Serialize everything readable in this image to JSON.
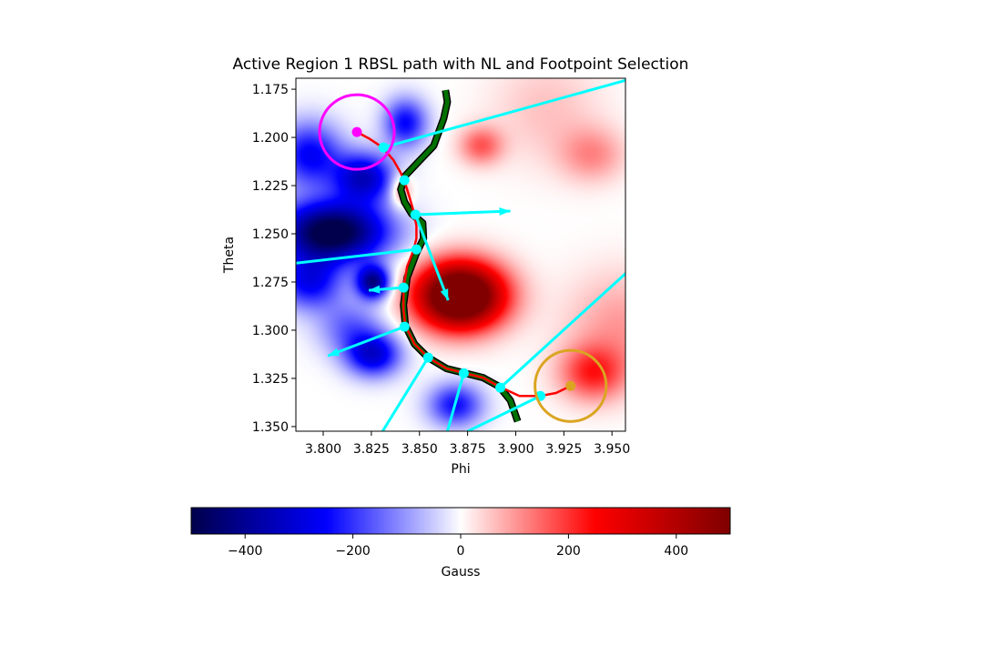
{
  "chart_data": {
    "type": "heatmap",
    "title": "Active Region 1 RBSL path with NL and Footpoint Selection",
    "xlabel": "Phi",
    "ylabel": "Theta",
    "xlim": [
      3.7858,
      3.957
    ],
    "ylim": [
      1.3524,
      1.1693
    ],
    "y_inverted": true,
    "xticks": [
      "3.800",
      "3.825",
      "3.850",
      "3.875",
      "3.900",
      "3.925",
      "3.950"
    ],
    "yticks": [
      "1.175",
      "1.200",
      "1.225",
      "1.250",
      "1.275",
      "1.300",
      "1.325",
      "1.350"
    ],
    "grid": false,
    "colormap": "seismic",
    "colorbar": {
      "label": "Gauss",
      "range": [
        -500,
        500
      ],
      "orientation": "horizontal",
      "ticks": [
        "-400",
        "-200",
        "0",
        "200",
        "400"
      ]
    },
    "field_blobs_gauss": [
      {
        "phi": 3.8711,
        "theta": 1.2821,
        "amp": 750,
        "sphi": 0.016,
        "stheta": 0.012
      },
      {
        "phi": 3.8047,
        "theta": 1.2491,
        "amp": -550,
        "sphi": 0.02,
        "stheta": 0.011
      },
      {
        "phi": 3.8213,
        "theta": 1.2208,
        "amp": -330,
        "sphi": 0.011,
        "stheta": 0.009
      },
      {
        "phi": 3.8427,
        "theta": 1.1925,
        "amp": -250,
        "sphi": 0.008,
        "stheta": 0.009
      },
      {
        "phi": 3.7929,
        "theta": 1.209,
        "amp": -260,
        "sphi": 0.012,
        "stheta": 0.012
      },
      {
        "phi": 3.8261,
        "theta": 1.2751,
        "amp": -420,
        "sphi": 0.006,
        "stheta": 0.006
      },
      {
        "phi": 3.7929,
        "theta": 1.2751,
        "amp": -260,
        "sphi": 0.012,
        "stheta": 0.01
      },
      {
        "phi": 3.8261,
        "theta": 1.3128,
        "amp": -300,
        "sphi": 0.01,
        "stheta": 0.008
      },
      {
        "phi": 3.8687,
        "theta": 1.3388,
        "amp": -240,
        "sphi": 0.01,
        "stheta": 0.008
      },
      {
        "phi": 3.8142,
        "theta": 1.2987,
        "amp": -150,
        "sphi": 0.012,
        "stheta": 0.01
      },
      {
        "phi": 3.882,
        "theta": 1.2043,
        "amp": 160,
        "sphi": 0.008,
        "stheta": 0.007
      },
      {
        "phi": 3.9398,
        "theta": 1.209,
        "amp": 110,
        "sphi": 0.012,
        "stheta": 0.01
      },
      {
        "phi": 3.8403,
        "theta": 1.2279,
        "amp": 150,
        "sphi": 0.004,
        "stheta": 0.006
      },
      {
        "phi": 3.9398,
        "theta": 1.3223,
        "amp": 200,
        "sphi": 0.012,
        "stheta": 0.01
      },
      {
        "phi": 3.954,
        "theta": 1.2987,
        "amp": 100,
        "sphi": 0.02,
        "stheta": 0.02
      },
      {
        "phi": 3.916,
        "theta": 1.1854,
        "amp": 60,
        "sphi": 0.02,
        "stheta": 0.02
      }
    ],
    "rbsl_path": {
      "color": "#ff0000",
      "points": [
        [
          3.8175,
          1.1972
        ],
        [
          3.8237,
          1.2005
        ],
        [
          3.8308,
          1.2052
        ],
        [
          3.8365,
          1.2118
        ],
        [
          3.8403,
          1.2184
        ],
        [
          3.8422,
          1.2227
        ],
        [
          3.8446,
          1.2302
        ],
        [
          3.8469,
          1.2382
        ],
        [
          3.8484,
          1.2458
        ],
        [
          3.8484,
          1.2524
        ],
        [
          3.8469,
          1.2585
        ],
        [
          3.8436,
          1.267
        ],
        [
          3.8417,
          1.2779
        ],
        [
          3.8417,
          1.2892
        ],
        [
          3.8427,
          1.2977
        ],
        [
          3.8474,
          1.3072
        ],
        [
          3.8545,
          1.3142
        ],
        [
          3.864,
          1.3199
        ],
        [
          3.8735,
          1.3223
        ],
        [
          3.883,
          1.3246
        ],
        [
          3.8915,
          1.3293
        ],
        [
          3.9019,
          1.3341
        ],
        [
          3.9128,
          1.3341
        ],
        [
          3.9209,
          1.3326
        ],
        [
          3.9285,
          1.3289
        ]
      ]
    },
    "neutral_line": {
      "color": "#007000",
      "points": [
        [
          3.8635,
          1.1755
        ],
        [
          3.8645,
          1.1816
        ],
        [
          3.8626,
          1.1901
        ],
        [
          3.8574,
          1.2043
        ],
        [
          3.8498,
          1.2123
        ],
        [
          3.8427,
          1.2198
        ],
        [
          3.8403,
          1.2269
        ],
        [
          3.8422,
          1.2335
        ],
        [
          3.846,
          1.2397
        ],
        [
          3.8517,
          1.2444
        ],
        [
          3.8521,
          1.2524
        ],
        [
          3.8484,
          1.26
        ],
        [
          3.8436,
          1.2727
        ],
        [
          3.8417,
          1.2869
        ],
        [
          3.8427,
          1.2977
        ],
        [
          3.8474,
          1.3072
        ],
        [
          3.8545,
          1.3142
        ],
        [
          3.864,
          1.3199
        ],
        [
          3.883,
          1.3246
        ],
        [
          3.8915,
          1.3293
        ],
        [
          3.8972,
          1.3364
        ],
        [
          3.901,
          1.3473
        ]
      ]
    },
    "footpoints": [
      {
        "phi": 3.8175,
        "theta": 1.1972,
        "color": "#ff00ff",
        "circle_radius_phi": 0.0194
      },
      {
        "phi": 3.9285,
        "theta": 1.3289,
        "color": "#daa520",
        "circle_radius_phi": 0.0185
      }
    ],
    "sample_points": {
      "color": "#00ffff",
      "points": [
        [
          3.8313,
          1.2052
        ],
        [
          3.8422,
          1.2222
        ],
        [
          3.8479,
          1.2401
        ],
        [
          3.8484,
          1.2581
        ],
        [
          3.8417,
          1.2779
        ],
        [
          3.8422,
          1.2982
        ],
        [
          3.8545,
          1.3142
        ],
        [
          3.873,
          1.3223
        ],
        [
          3.892,
          1.3298
        ],
        [
          3.9128,
          1.3341
        ]
      ]
    },
    "vectors": [
      {
        "from": [
          3.8313,
          1.2052
        ],
        "to": [
          3.9574,
          1.1703
        ],
        "arrow": false
      },
      {
        "from": [
          3.8479,
          1.2401
        ],
        "to": [
          3.8972,
          1.2382
        ],
        "arrow": true
      },
      {
        "from": [
          3.8479,
          1.2401
        ],
        "to": [
          3.8649,
          1.2845
        ],
        "arrow": true
      },
      {
        "from": [
          3.8484,
          1.2581
        ],
        "to": [
          3.7858,
          1.2652
        ],
        "arrow": false
      },
      {
        "from": [
          3.8417,
          1.2779
        ],
        "to": [
          3.8237,
          1.2793
        ],
        "arrow": true
      },
      {
        "from": [
          3.8422,
          1.2982
        ],
        "to": [
          3.8024,
          1.3133
        ],
        "arrow": true
      },
      {
        "from": [
          3.8545,
          1.3142
        ],
        "to": [
          3.8308,
          1.3525
        ],
        "arrow": false
      },
      {
        "from": [
          3.873,
          1.3223
        ],
        "to": [
          3.8645,
          1.3525
        ],
        "arrow": false
      },
      {
        "from": [
          3.892,
          1.3298
        ],
        "to": [
          3.9574,
          1.2703
        ],
        "arrow": false
      },
      {
        "from": [
          3.9128,
          1.3341
        ],
        "to": [
          3.8749,
          1.3525
        ],
        "arrow": false
      }
    ]
  }
}
